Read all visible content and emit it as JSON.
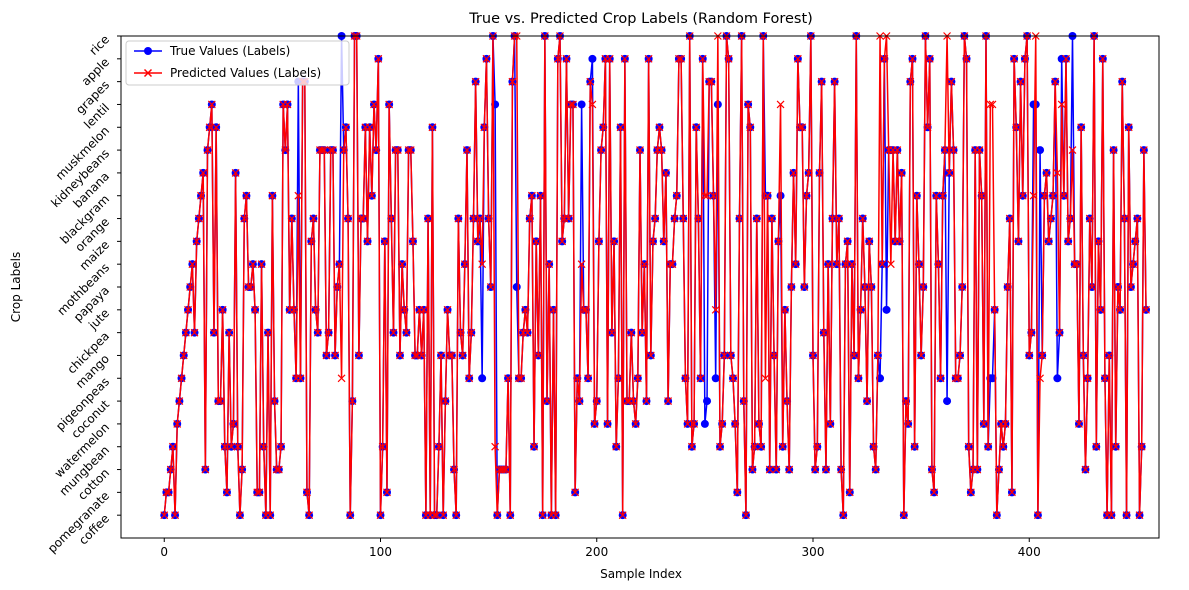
{
  "chart_data": {
    "type": "line",
    "title": "True vs. Predicted Crop Labels (Random Forest)",
    "xlabel": "Sample Index",
    "ylabel": "Crop Labels",
    "xlim": [
      -20,
      460
    ],
    "ylim": [
      -1.0,
      21.0
    ],
    "x_ticks": [
      0,
      100,
      200,
      300,
      400
    ],
    "y_ticks": [
      0,
      1,
      2,
      3,
      4,
      5,
      6,
      7,
      8,
      9,
      10,
      11,
      12,
      13,
      14,
      15,
      16,
      17,
      18,
      19,
      20,
      21
    ],
    "y_tick_labels": [
      "coffee",
      "pomegranate",
      "cotton",
      "mungbean",
      "watermelon",
      "coconut",
      "pigeonpeas",
      "mango",
      "chickpea",
      "jute",
      "papaya",
      "mothbeans",
      "maize",
      "orange",
      "blackgram",
      "banana",
      "kidneybeans",
      "muskmelon",
      "lentil",
      "grapes",
      "apple",
      "rice"
    ],
    "legend": {
      "placement": "top-left",
      "entries": [
        "True Values (Labels)",
        "Predicted Values (Labels)"
      ]
    },
    "grid": false,
    "colors": {
      "true": "#0000ff",
      "predicted": "#ff0000"
    },
    "series": [
      {
        "name": "True Values (Labels)",
        "marker": "circle",
        "values": [
          0,
          1,
          1,
          2,
          3,
          0,
          4,
          5,
          6,
          7,
          8,
          9,
          10,
          11,
          8,
          12,
          13,
          14,
          15,
          2,
          16,
          17,
          18,
          8,
          17,
          5,
          5,
          9,
          3,
          1,
          8,
          3,
          4,
          15,
          3,
          0,
          2,
          13,
          14,
          10,
          10,
          11,
          9,
          1,
          1,
          11,
          3,
          0,
          8,
          0,
          14,
          5,
          2,
          2,
          3,
          18,
          16,
          18,
          9,
          13,
          9,
          6,
          19,
          6,
          19,
          19,
          1,
          0,
          12,
          13,
          9,
          8,
          16,
          16,
          16,
          7,
          8,
          16,
          16,
          7,
          10,
          11,
          21,
          16,
          17,
          13,
          0,
          5,
          21,
          21,
          7,
          13,
          13,
          17,
          12,
          17,
          14,
          18,
          16,
          20,
          0,
          3,
          12,
          1,
          18,
          13,
          8,
          16,
          16,
          7,
          11,
          9,
          8,
          16,
          16,
          12,
          7,
          7,
          9,
          7,
          9,
          0,
          13,
          0,
          17,
          0,
          0,
          3,
          7,
          0,
          5,
          9,
          7,
          7,
          2,
          0,
          13,
          8,
          7,
          11,
          16,
          6,
          8,
          13,
          19,
          12,
          13,
          20,
          17,
          20,
          13,
          10,
          21,
          3,
          0,
          2,
          2,
          2,
          2,
          6,
          0,
          19,
          21,
          10,
          6,
          6,
          8,
          9,
          8,
          13,
          14,
          3,
          12,
          7,
          14,
          0,
          21,
          5,
          11,
          0,
          9,
          0,
          20,
          21,
          12,
          13,
          20,
          13,
          18,
          18,
          1,
          6,
          5,
          3,
          9,
          9,
          6,
          19,
          20,
          4,
          5,
          12,
          16,
          17,
          20,
          4,
          20,
          8,
          12,
          3,
          6,
          17,
          0,
          20,
          5,
          5,
          8,
          5,
          4,
          6,
          16,
          8,
          11,
          5,
          20,
          7,
          12,
          13,
          16,
          17,
          16,
          12,
          15,
          5,
          11,
          11,
          13,
          14,
          20,
          20,
          13,
          6,
          4,
          21,
          3,
          4,
          17,
          13,
          6,
          20,
          4,
          5,
          19,
          19,
          14,
          9,
          21,
          3,
          4,
          7,
          21,
          20,
          7,
          6,
          4,
          1,
          13,
          21,
          5,
          0,
          18,
          17,
          2,
          3,
          13,
          4,
          3,
          21,
          14,
          14,
          2,
          13,
          7,
          2,
          12,
          14,
          3,
          9,
          5,
          2,
          10,
          15,
          11,
          20,
          17,
          17,
          10,
          14,
          15,
          21,
          7,
          2,
          3,
          15,
          19,
          8,
          2,
          11,
          4,
          13,
          19,
          11,
          13,
          2,
          0,
          11,
          12,
          1,
          11,
          7,
          21,
          6,
          9,
          13,
          10,
          5,
          12,
          10,
          3,
          2,
          7,
          6,
          11,
          20,
          9,
          16,
          16,
          16,
          12,
          16,
          12,
          15,
          0,
          5,
          4,
          19,
          20,
          3,
          14,
          11,
          7,
          10,
          21,
          17,
          20,
          2,
          1,
          14,
          11,
          6,
          14,
          16,
          5,
          15,
          19,
          16,
          6,
          6,
          7,
          10,
          21,
          20,
          3,
          1,
          2,
          16,
          2,
          16,
          14,
          4,
          21,
          3,
          6,
          18,
          9,
          0,
          2,
          4,
          3,
          4,
          10,
          13,
          1,
          20,
          17,
          12,
          19,
          14,
          20,
          21,
          7,
          8,
          14,
          21,
          0,
          16,
          7,
          14,
          15,
          12,
          13,
          14,
          19,
          15,
          8,
          20,
          14,
          20,
          12,
          13,
          16,
          11,
          11,
          4,
          17,
          7,
          2,
          6,
          13,
          10,
          21,
          3,
          12,
          9,
          20,
          6,
          0,
          7,
          0,
          16,
          3,
          10,
          9,
          19,
          13,
          0,
          17,
          10,
          11,
          12,
          13,
          0,
          3,
          16,
          9
        ],
        "differences": [
          [
            63,
            6
          ],
          [
            147,
            6
          ],
          [
            153,
            18
          ],
          [
            193,
            18
          ],
          [
            255,
            6
          ],
          [
            256,
            18
          ],
          [
            383,
            6
          ],
          [
            402,
            18
          ],
          [
            403,
            18
          ],
          [
            413,
            6
          ],
          [
            420,
            21
          ]
        ]
      },
      {
        "name": "Predicted Values (Labels)",
        "marker": "x",
        "differences": [
          [
            62,
            14
          ],
          [
            82,
            6
          ],
          [
            147,
            11
          ],
          [
            163,
            21
          ],
          [
            193,
            11
          ],
          [
            198,
            18
          ],
          [
            250,
            14
          ],
          [
            251,
            14
          ],
          [
            278,
            6
          ],
          [
            285,
            18
          ],
          [
            331,
            21
          ],
          [
            334,
            21
          ],
          [
            336,
            11
          ],
          [
            362,
            21
          ],
          [
            382,
            18
          ],
          [
            402,
            14
          ],
          [
            405,
            6
          ],
          [
            415,
            18
          ]
        ]
      }
    ]
  }
}
